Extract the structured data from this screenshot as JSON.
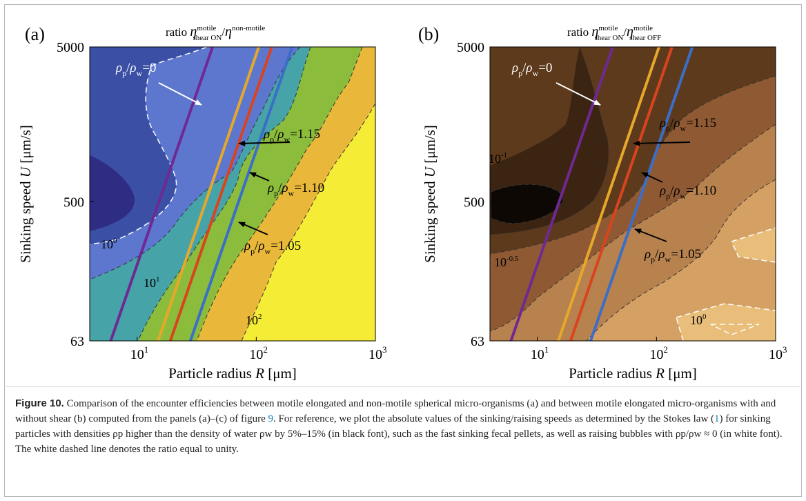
{
  "chart_data": [
    {
      "type": "heatmap",
      "panel_label": "(a)",
      "title": "ratio η^motile_shear ON / η^non-motile",
      "ylabel": "Sinking speed U [μm/s]",
      "xlabel": "Particle radius R [μm]",
      "x_scale": "log",
      "y_scale": "log",
      "xlim": [
        4,
        1000
      ],
      "ylim": [
        63,
        5000
      ],
      "x_ticks": [
        {
          "value": 10,
          "label": "10",
          "exp": "1"
        },
        {
          "value": 100,
          "label": "10",
          "exp": "2"
        },
        {
          "value": 1000,
          "label": "10",
          "exp": "3"
        }
      ],
      "y_ticks": [
        {
          "value": 5000,
          "label": "5000"
        },
        {
          "value": 500,
          "label": "500"
        },
        {
          "value": 63,
          "label": "63"
        }
      ],
      "contour_levels": [
        {
          "label": "10",
          "exp": "0",
          "value": 1,
          "color": "#5d77cf"
        },
        {
          "label": "10",
          "exp": "1",
          "value": 10,
          "color": "#8cbc3c"
        },
        {
          "label": "10",
          "exp": "2",
          "value": 100,
          "color": "#ead83a"
        }
      ],
      "region_colors": [
        "#2f2c84",
        "#3b4fa5",
        "#5d77cf",
        "#46a3a8",
        "#8cbc3c",
        "#e9b83a",
        "#f4ec35"
      ],
      "series": [
        {
          "name": "ρp/ρw=0",
          "density_ratio": 0,
          "color": "#6e2a92",
          "points": [
            [
              6,
              63
            ],
            [
              43,
              5000
            ]
          ]
        },
        {
          "name": "ρp/ρw=1.15",
          "density_ratio": 1.15,
          "color": "#e6a82a",
          "points": [
            [
              15,
              63
            ],
            [
              105,
              5000
            ]
          ]
        },
        {
          "name": "ρp/ρw=1.10",
          "density_ratio": 1.1,
          "color": "#d9441e",
          "points": [
            [
              19,
              63
            ],
            [
              135,
              5000
            ]
          ]
        },
        {
          "name": "ρp/ρw=1.05",
          "density_ratio": 1.05,
          "color": "#3a6ec8",
          "points": [
            [
              28,
              63
            ],
            [
              200,
              5000
            ]
          ]
        }
      ]
    },
    {
      "type": "heatmap",
      "panel_label": "(b)",
      "title": "ratio η^motile_shear ON / η^motile_shear OFF",
      "ylabel": "Sinking speed U [μm/s]",
      "xlabel": "Particle radius R [μm]",
      "x_scale": "log",
      "y_scale": "log",
      "xlim": [
        4,
        1000
      ],
      "ylim": [
        63,
        5000
      ],
      "x_ticks": [
        {
          "value": 10,
          "label": "10",
          "exp": "1"
        },
        {
          "value": 100,
          "label": "10",
          "exp": "2"
        },
        {
          "value": 1000,
          "label": "10",
          "exp": "3"
        }
      ],
      "y_ticks": [
        {
          "value": 5000,
          "label": "5000"
        },
        {
          "value": 500,
          "label": "500"
        },
        {
          "value": 63,
          "label": "63"
        }
      ],
      "contour_levels": [
        {
          "label": "10",
          "exp": "-1",
          "value": 0.1,
          "color": "#3b2412"
        },
        {
          "label": "10",
          "exp": "-0.5",
          "value": 0.316,
          "color": "#8f5a33"
        },
        {
          "label": "10",
          "exp": "0",
          "value": 1,
          "color": "#e9be7a"
        }
      ],
      "region_colors": [
        "#0e0805",
        "#3b2412",
        "#5e3a1d",
        "#8f5a33",
        "#b8824e",
        "#d4a064",
        "#e9be7a"
      ],
      "series": [
        {
          "name": "ρp/ρw=0",
          "density_ratio": 0,
          "color": "#6e2a92",
          "points": [
            [
              6,
              63
            ],
            [
              43,
              5000
            ]
          ]
        },
        {
          "name": "ρp/ρw=1.15",
          "density_ratio": 1.15,
          "color": "#e6a82a",
          "points": [
            [
              15,
              63
            ],
            [
              105,
              5000
            ]
          ]
        },
        {
          "name": "ρp/ρw=1.10",
          "density_ratio": 1.1,
          "color": "#d9441e",
          "points": [
            [
              19,
              63
            ],
            [
              135,
              5000
            ]
          ]
        },
        {
          "name": "ρp/ρw=1.05",
          "density_ratio": 1.05,
          "color": "#3a6ec8",
          "points": [
            [
              28,
              63
            ],
            [
              200,
              5000
            ]
          ]
        }
      ]
    }
  ],
  "caption": {
    "label": "Figure 10.",
    "text_1": " Comparison of the encounter efficiencies between motile elongated and non-motile spherical micro-organisms (a) and between motile elongated micro-organisms with and without shear (b) computed from the panels (a)–(c) of figure ",
    "ref_figure": "9",
    "text_2": ". For reference, we plot the absolute values of the sinking/raising speeds as determined by the Stokes law ",
    "ref_eq_open": "(",
    "ref_eq": "1",
    "ref_eq_close": ")",
    "text_3": " for sinking particles with densities ρp higher than the density of water ρw by 5%–15% (in black font), such as the fast sinking fecal pellets, as well as raising bubbles with ρp/ρw ≈ 0 (in white font). The white dashed line denotes the ratio equal to unity."
  }
}
